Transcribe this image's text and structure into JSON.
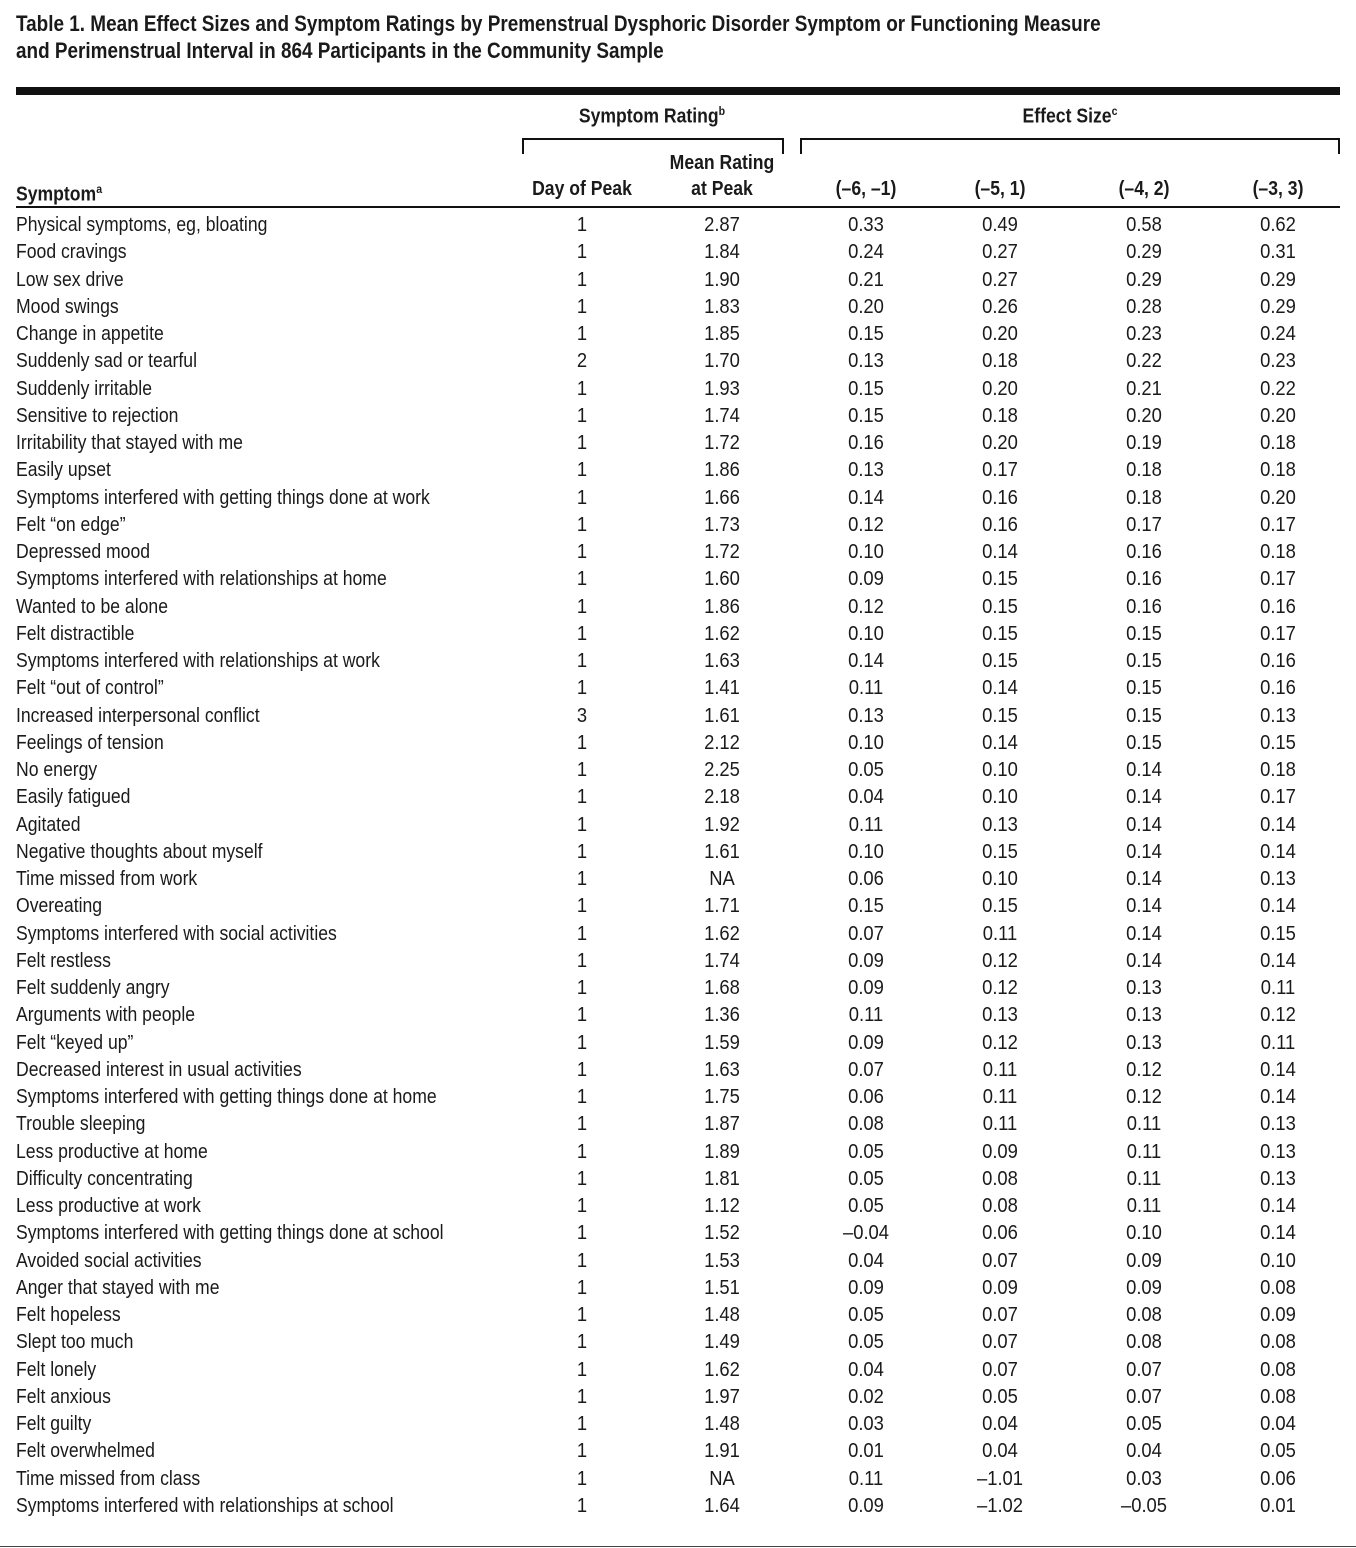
{
  "title": "Table 1. Mean Effect Sizes and Symptom Ratings by Premenstrual Dysphoric Disorder Symptom or Functioning Measure and Perimenstrual Interval in 864 Participants in the Community Sample",
  "title_line1": "Table 1. Mean Effect Sizes and Symptom Ratings by Premenstrual Dysphoric Disorder Symptom or Functioning Measure",
  "title_line2": "and Perimenstrual Interval in 864 Participants in the Community Sample",
  "group_headers": {
    "symptom_rating": "Symptom Rating",
    "symptom_rating_sup": "b",
    "effect_size": "Effect Size",
    "effect_size_sup": "c"
  },
  "columns": {
    "symptom": "Symptom",
    "symptom_sup": "a",
    "day_of_peak": "Day of Peak",
    "mean_rating_l1": "Mean Rating",
    "mean_rating_l2": "at Peak",
    "e1": "(–6, –1)",
    "e2": "(–5, 1)",
    "e3": "(–4, 2)",
    "e4": "(–3, 3)"
  },
  "rows": [
    [
      "Physical symptoms, eg, bloating",
      "1",
      "2.87",
      "0.33",
      "0.49",
      "0.58",
      "0.62"
    ],
    [
      "Food cravings",
      "1",
      "1.84",
      "0.24",
      "0.27",
      "0.29",
      "0.31"
    ],
    [
      "Low sex drive",
      "1",
      "1.90",
      "0.21",
      "0.27",
      "0.29",
      "0.29"
    ],
    [
      "Mood swings",
      "1",
      "1.83",
      "0.20",
      "0.26",
      "0.28",
      "0.29"
    ],
    [
      "Change in appetite",
      "1",
      "1.85",
      "0.15",
      "0.20",
      "0.23",
      "0.24"
    ],
    [
      "Suddenly sad or tearful",
      "2",
      "1.70",
      "0.13",
      "0.18",
      "0.22",
      "0.23"
    ],
    [
      "Suddenly irritable",
      "1",
      "1.93",
      "0.15",
      "0.20",
      "0.21",
      "0.22"
    ],
    [
      "Sensitive to rejection",
      "1",
      "1.74",
      "0.15",
      "0.18",
      "0.20",
      "0.20"
    ],
    [
      "Irritability that stayed with me",
      "1",
      "1.72",
      "0.16",
      "0.20",
      "0.19",
      "0.18"
    ],
    [
      "Easily upset",
      "1",
      "1.86",
      "0.13",
      "0.17",
      "0.18",
      "0.18"
    ],
    [
      "Symptoms interfered with getting things done at work",
      "1",
      "1.66",
      "0.14",
      "0.16",
      "0.18",
      "0.20"
    ],
    [
      "Felt “on edge”",
      "1",
      "1.73",
      "0.12",
      "0.16",
      "0.17",
      "0.17"
    ],
    [
      "Depressed mood",
      "1",
      "1.72",
      "0.10",
      "0.14",
      "0.16",
      "0.18"
    ],
    [
      "Symptoms interfered with relationships at home",
      "1",
      "1.60",
      "0.09",
      "0.15",
      "0.16",
      "0.17"
    ],
    [
      "Wanted to be alone",
      "1",
      "1.86",
      "0.12",
      "0.15",
      "0.16",
      "0.16"
    ],
    [
      "Felt distractible",
      "1",
      "1.62",
      "0.10",
      "0.15",
      "0.15",
      "0.17"
    ],
    [
      "Symptoms interfered with relationships at work",
      "1",
      "1.63",
      "0.14",
      "0.15",
      "0.15",
      "0.16"
    ],
    [
      "Felt “out of control”",
      "1",
      "1.41",
      "0.11",
      "0.14",
      "0.15",
      "0.16"
    ],
    [
      "Increased interpersonal conflict",
      "3",
      "1.61",
      "0.13",
      "0.15",
      "0.15",
      "0.13"
    ],
    [
      "Feelings of tension",
      "1",
      "2.12",
      "0.10",
      "0.14",
      "0.15",
      "0.15"
    ],
    [
      "No energy",
      "1",
      "2.25",
      "0.05",
      "0.10",
      "0.14",
      "0.18"
    ],
    [
      "Easily fatigued",
      "1",
      "2.18",
      "0.04",
      "0.10",
      "0.14",
      "0.17"
    ],
    [
      "Agitated",
      "1",
      "1.92",
      "0.11",
      "0.13",
      "0.14",
      "0.14"
    ],
    [
      "Negative thoughts about myself",
      "1",
      "1.61",
      "0.10",
      "0.15",
      "0.14",
      "0.14"
    ],
    [
      "Time missed from work",
      "1",
      "NA",
      "0.06",
      "0.10",
      "0.14",
      "0.13"
    ],
    [
      "Overeating",
      "1",
      "1.71",
      "0.15",
      "0.15",
      "0.14",
      "0.14"
    ],
    [
      "Symptoms interfered with social activities",
      "1",
      "1.62",
      "0.07",
      "0.11",
      "0.14",
      "0.15"
    ],
    [
      "Felt restless",
      "1",
      "1.74",
      "0.09",
      "0.12",
      "0.14",
      "0.14"
    ],
    [
      "Felt suddenly angry",
      "1",
      "1.68",
      "0.09",
      "0.12",
      "0.13",
      "0.11"
    ],
    [
      "Arguments with people",
      "1",
      "1.36",
      "0.11",
      "0.13",
      "0.13",
      "0.12"
    ],
    [
      "Felt “keyed up”",
      "1",
      "1.59",
      "0.09",
      "0.12",
      "0.13",
      "0.11"
    ],
    [
      "Decreased interest in usual activities",
      "1",
      "1.63",
      "0.07",
      "0.11",
      "0.12",
      "0.14"
    ],
    [
      "Symptoms interfered with getting things done at home",
      "1",
      "1.75",
      "0.06",
      "0.11",
      "0.12",
      "0.14"
    ],
    [
      "Trouble sleeping",
      "1",
      "1.87",
      "0.08",
      "0.11",
      "0.11",
      "0.13"
    ],
    [
      "Less productive at home",
      "1",
      "1.89",
      "0.05",
      "0.09",
      "0.11",
      "0.13"
    ],
    [
      "Difficulty concentrating",
      "1",
      "1.81",
      "0.05",
      "0.08",
      "0.11",
      "0.13"
    ],
    [
      "Less productive at work",
      "1",
      "1.12",
      "0.05",
      "0.08",
      "0.11",
      "0.14"
    ],
    [
      "Symptoms interfered with getting things done at school",
      "1",
      "1.52",
      "–0.04",
      "0.06",
      "0.10",
      "0.14"
    ],
    [
      "Avoided social activities",
      "1",
      "1.53",
      "0.04",
      "0.07",
      "0.09",
      "0.10"
    ],
    [
      "Anger that stayed with me",
      "1",
      "1.51",
      "0.09",
      "0.09",
      "0.09",
      "0.08"
    ],
    [
      "Felt hopeless",
      "1",
      "1.48",
      "0.05",
      "0.07",
      "0.08",
      "0.09"
    ],
    [
      "Slept too much",
      "1",
      "1.49",
      "0.05",
      "0.07",
      "0.08",
      "0.08"
    ],
    [
      "Felt lonely",
      "1",
      "1.62",
      "0.04",
      "0.07",
      "0.07",
      "0.08"
    ],
    [
      "Felt anxious",
      "1",
      "1.97",
      "0.02",
      "0.05",
      "0.07",
      "0.08"
    ],
    [
      "Felt guilty",
      "1",
      "1.48",
      "0.03",
      "0.04",
      "0.05",
      "0.04"
    ],
    [
      "Felt overwhelmed",
      "1",
      "1.91",
      "0.01",
      "0.04",
      "0.04",
      "0.05"
    ],
    [
      "Time missed from class",
      "1",
      "NA",
      "0.11",
      "–1.01",
      "0.03",
      "0.06"
    ],
    [
      "Symptoms interfered with relationships at school",
      "1",
      "1.64",
      "0.09",
      "–1.02",
      "–0.05",
      "0.01"
    ]
  ]
}
